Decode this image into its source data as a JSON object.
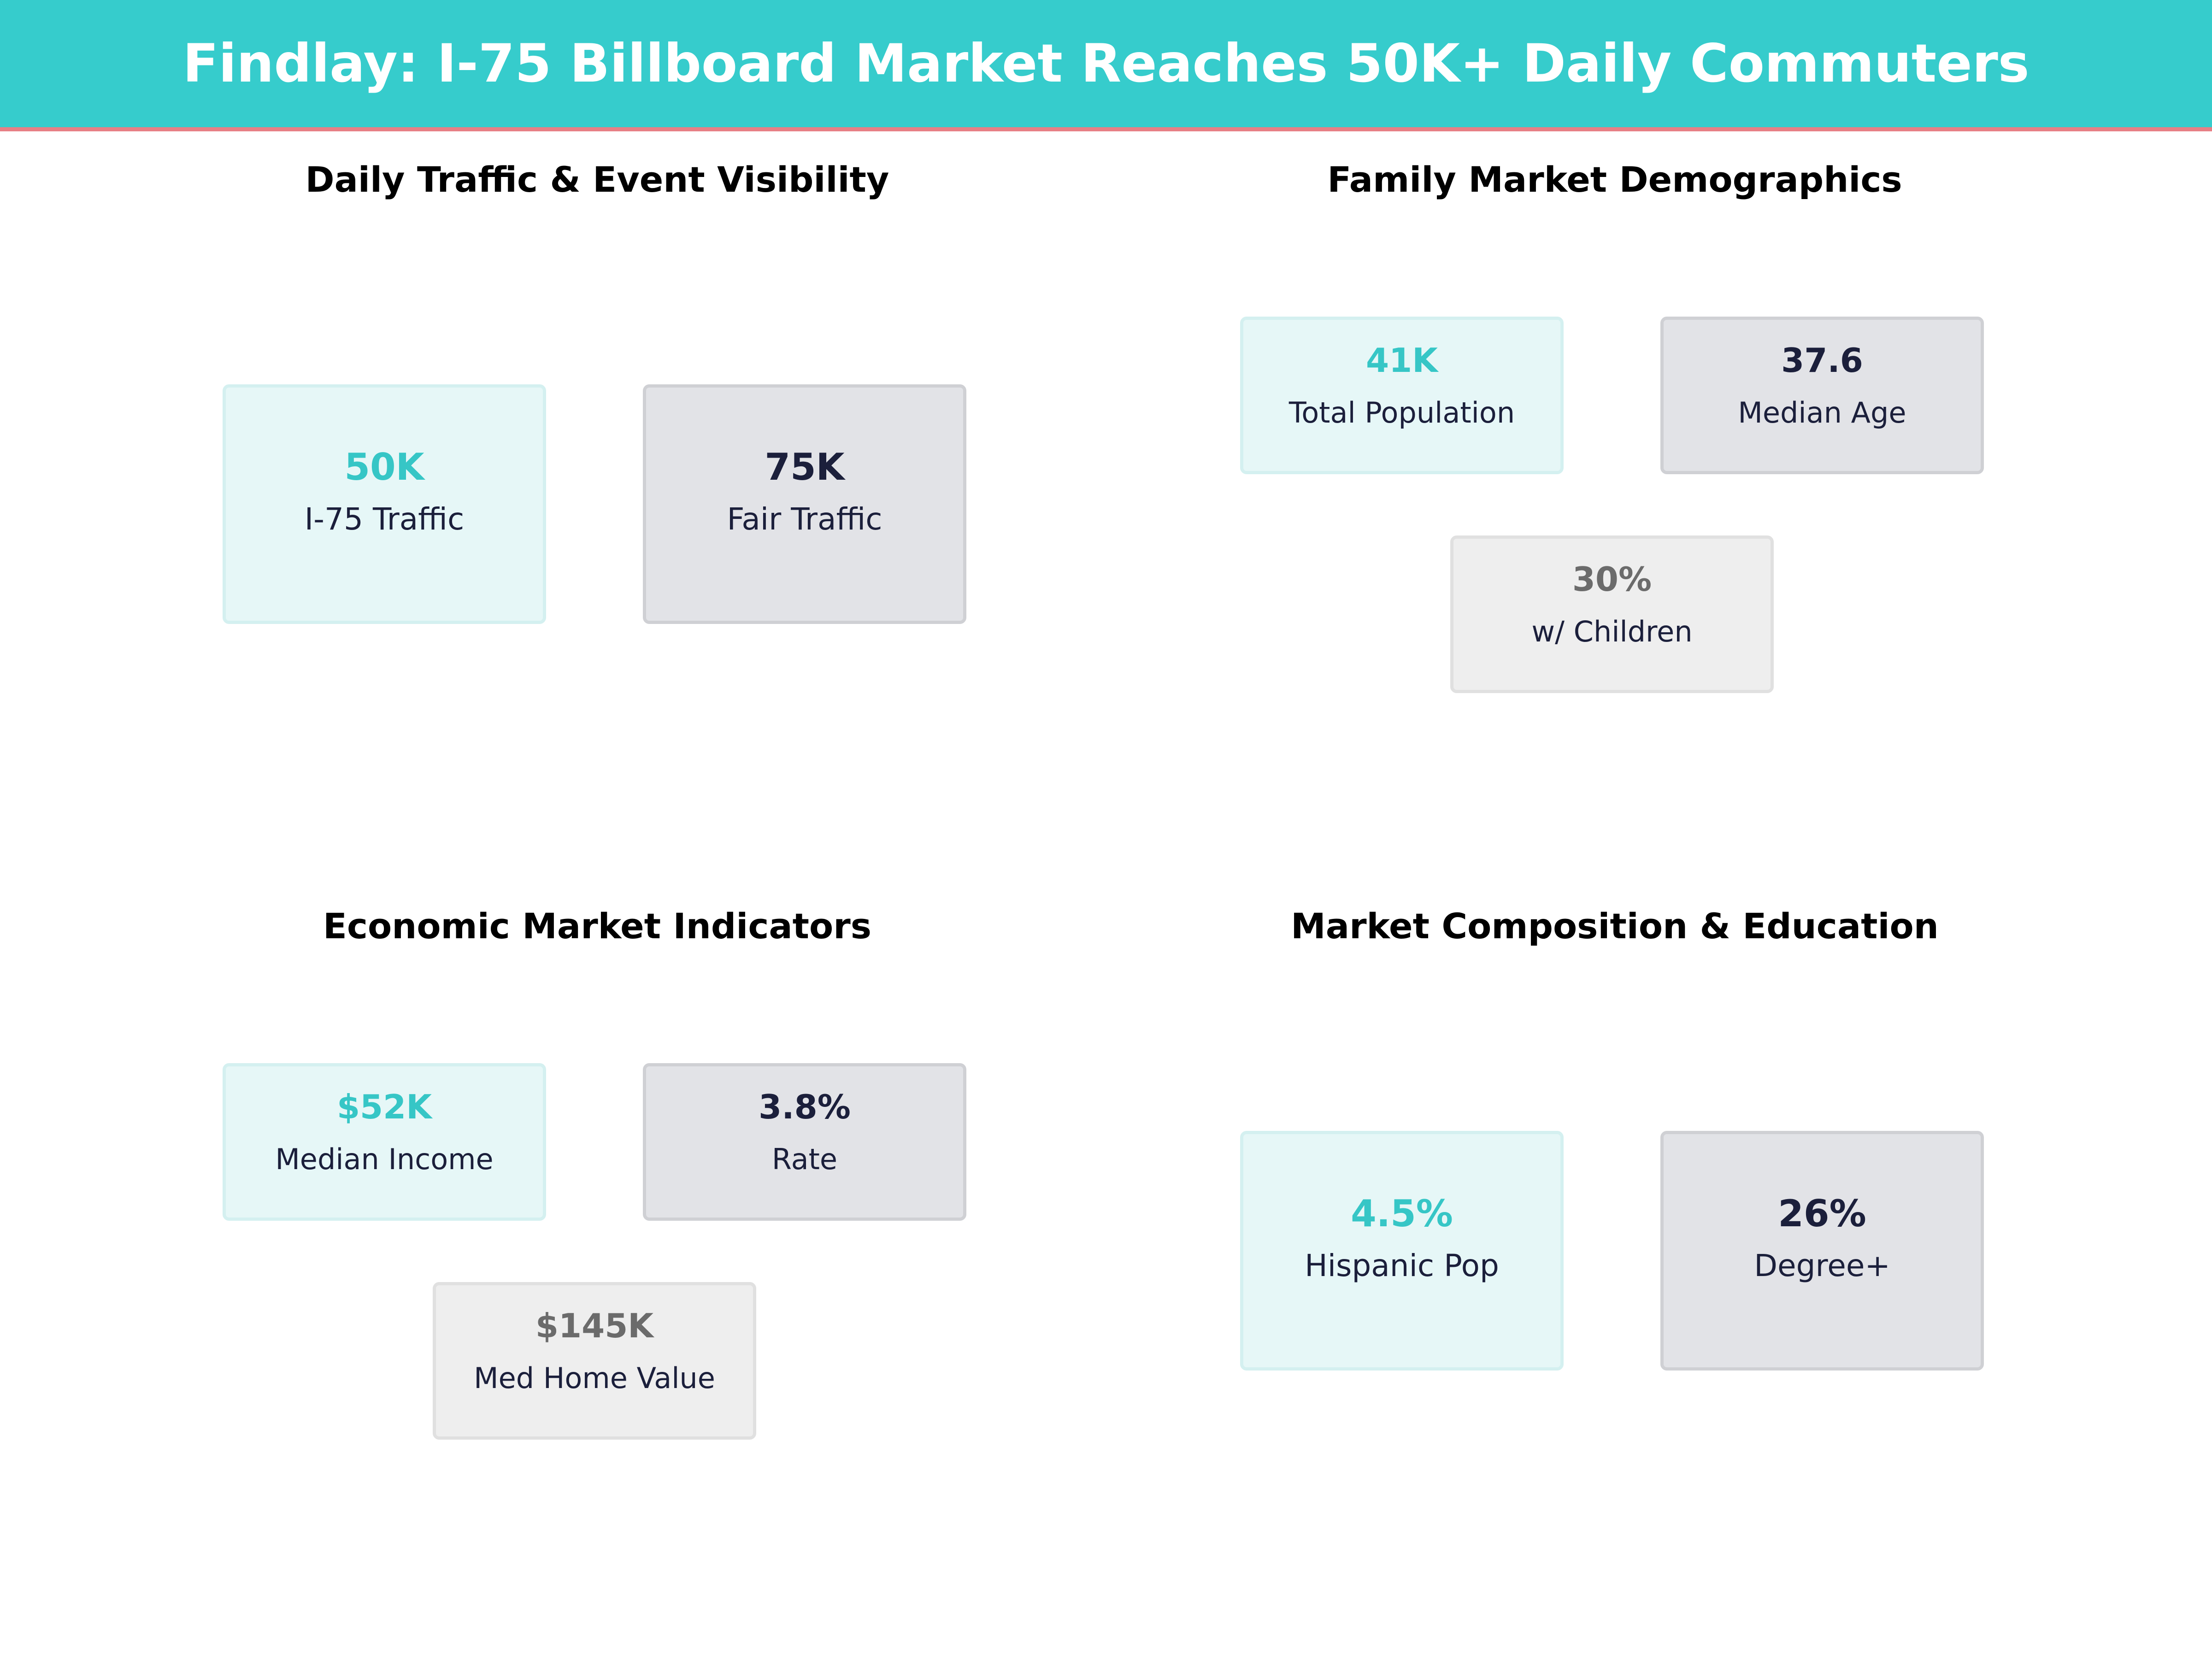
{
  "header": {
    "title": "Findlay: I-75 Billboard Market Reaches 50K+ Daily Commuters"
  },
  "colors": {
    "header_background": "#36cccc",
    "header_underline": "#e77f85",
    "teal_value": "#36c6c6",
    "dark_value": "#1b1f3b",
    "grey_value": "#6b6b6b"
  },
  "panels": [
    {
      "title": "Daily Traffic & Event Visibility",
      "cards": [
        {
          "value": "50K",
          "label": "I-75 Traffic"
        },
        {
          "value": "75K",
          "label": "Fair Traffic"
        }
      ]
    },
    {
      "title": "Family Market Demographics",
      "cards": [
        {
          "value": "41K",
          "label": "Total Population"
        },
        {
          "value": "37.6",
          "label": "Median Age"
        },
        {
          "value": "30%",
          "label": "w/ Children"
        }
      ]
    },
    {
      "title": "Economic Market Indicators",
      "cards": [
        {
          "value": "$52K",
          "label": "Median Income"
        },
        {
          "value": "3.8%",
          "label": "Rate"
        },
        {
          "value": "$145K",
          "label": "Med Home Value"
        }
      ]
    },
    {
      "title": "Market Composition & Education",
      "cards": [
        {
          "value": "4.5%",
          "label": "Hispanic Pop"
        },
        {
          "value": "26%",
          "label": "Degree+"
        }
      ]
    }
  ]
}
